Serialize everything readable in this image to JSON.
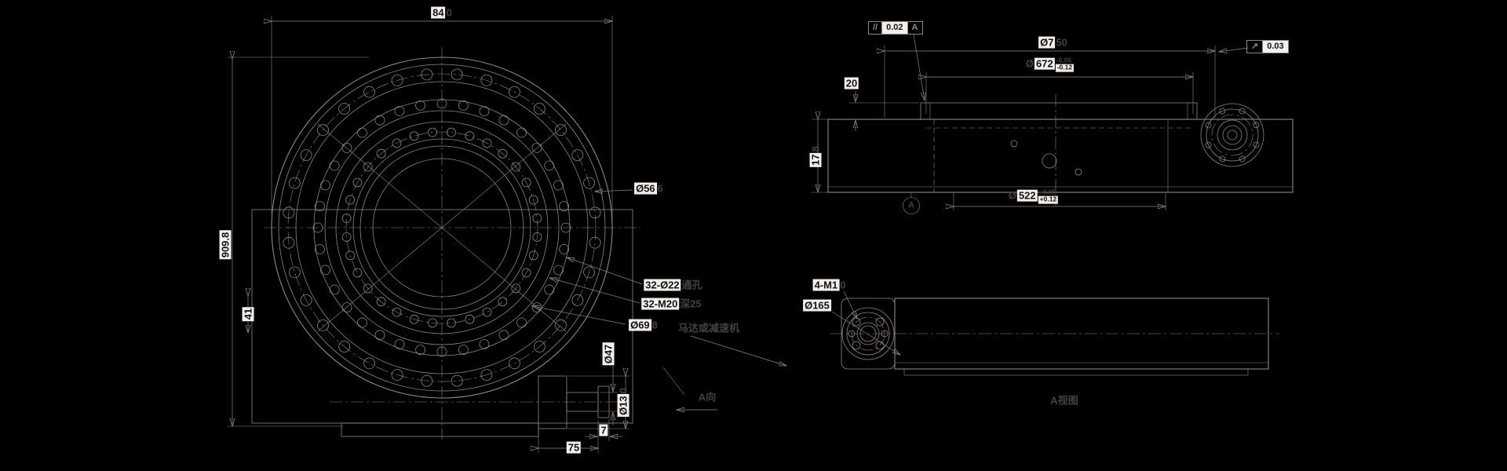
{
  "drawing": {
    "plan": {
      "dim_outer": {
        "main": "84",
        "suffix": "0"
      },
      "dim_overall_v": "909.8",
      "dim_41": "41",
      "dia_gear": {
        "main": "Ø56",
        "suffix": "6"
      },
      "holes_outer": {
        "main": "32-Ø22",
        "suffix": "通孔"
      },
      "holes_inner": {
        "main": "32-M20",
        "suffix": "深25"
      },
      "dia_698": {
        "main": "Ø69",
        "suffix": "8"
      },
      "motor_note": "马达或减速机",
      "dia_shaft": "Ø47",
      "dia_boss": {
        "main": "Ø13",
        "suffix": "0"
      },
      "dim_7": "7",
      "dim_75": "75",
      "view_dir": "A向"
    },
    "side": {
      "tol_parallel": {
        "symbol": "//",
        "value": "0.02",
        "datum": "A"
      },
      "dia_750": {
        "main": "Ø7",
        "suffix": "50"
      },
      "dia_672": {
        "prefix": "Ø",
        "main": "672",
        "sup": "-0.05",
        "sub": "-0.12"
      },
      "dim_20": "20",
      "dim_height": {
        "main": "17",
        "suffix": "8"
      },
      "dia_522": {
        "prefix": "Ø",
        "main": "522",
        "sup": "+0.05",
        "sub": "+0.12"
      },
      "tol_runout": {
        "symbol": "↗",
        "value": "0.03"
      },
      "datum_label": "A"
    },
    "a_view": {
      "holes": {
        "main": "4-M1",
        "suffix": "0"
      },
      "dia_165": "Ø165",
      "caption": "A视图"
    },
    "colors": {
      "background": "#000000",
      "line": "#8f8680",
      "highlight_bg": "#f2efec",
      "faint_text": "#46413c"
    }
  }
}
